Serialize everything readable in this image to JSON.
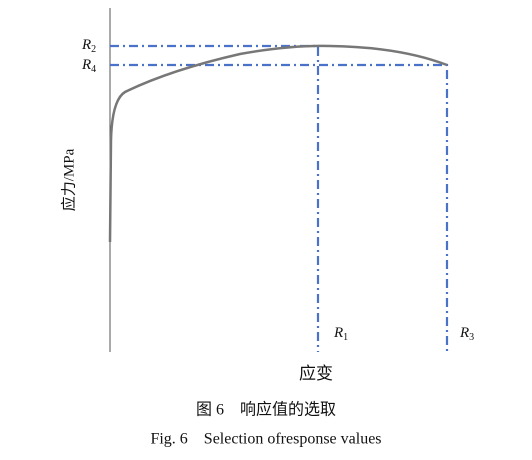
{
  "y_axis_label": "应力/MPa",
  "x_axis_label": "应变",
  "markers": {
    "r1": {
      "symbol": "R",
      "sub": "1"
    },
    "r2": {
      "symbol": "R",
      "sub": "2"
    },
    "r3": {
      "symbol": "R",
      "sub": "3"
    },
    "r4": {
      "symbol": "R",
      "sub": "4"
    }
  },
  "caption": {
    "cn": "图 6　响应值的选取",
    "en": "Fig. 6    Selection ofresponse values"
  }
}
